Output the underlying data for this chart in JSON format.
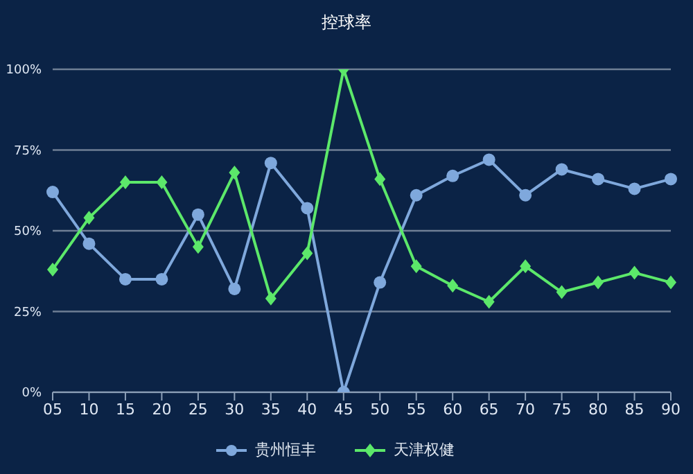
{
  "chart_data": {
    "type": "line",
    "title": "控球率",
    "categories": [
      "05",
      "10",
      "15",
      "20",
      "25",
      "30",
      "35",
      "40",
      "45",
      "50",
      "55",
      "60",
      "65",
      "70",
      "75",
      "80",
      "85",
      "90"
    ],
    "series": [
      {
        "name": "贵州恒丰",
        "color": "#7fa8dc",
        "marker": "circle",
        "values": [
          62,
          46,
          35,
          35,
          55,
          32,
          71,
          57,
          0,
          34,
          61,
          67,
          72,
          61,
          69,
          66,
          63,
          66
        ]
      },
      {
        "name": "天津权健",
        "color": "#5ce86a",
        "marker": "diamond",
        "values": [
          38,
          54,
          65,
          65,
          45,
          68,
          29,
          43,
          100,
          66,
          39,
          33,
          28,
          39,
          31,
          34,
          37,
          34
        ]
      }
    ],
    "ylim": [
      0,
      100
    ],
    "yticks": [
      {
        "value": 0,
        "label": "0%"
      },
      {
        "value": 25,
        "label": "25%"
      },
      {
        "value": 50,
        "label": "50%"
      },
      {
        "value": 75,
        "label": "75%"
      },
      {
        "value": 100,
        "label": "100%"
      }
    ],
    "grid": "y",
    "legend": "bottom"
  }
}
